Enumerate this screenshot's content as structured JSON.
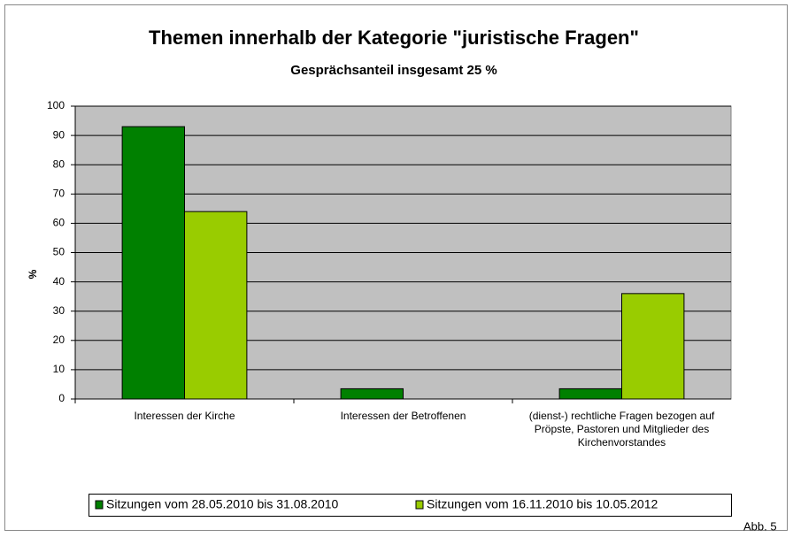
{
  "chart_data": {
    "type": "bar",
    "title": "Themen innerhalb der Kategorie \"juristische Fragen\"",
    "subtitle": "Gesprächsanteil insgesamt 25 %",
    "y_label": "%",
    "categories": [
      "Interessen der Kirche",
      "Interessen der Betroffenen",
      "(dienst-) rechtliche Fragen bezogen auf Pröpste, Pastoren und Mitglieder des Kirchenvorstandes"
    ],
    "series": [
      {
        "name": "Sitzungen vom 28.05.2010 bis 31.08.2010",
        "color": "#008000",
        "values": [
          93,
          3.5,
          3.5
        ]
      },
      {
        "name": "Sitzungen vom 16.11.2010 bis 10.05.2012",
        "color": "#99cc00",
        "values": [
          64,
          0,
          36
        ]
      }
    ],
    "ylim": [
      0,
      100
    ],
    "yticks": [
      0,
      10,
      20,
      30,
      40,
      50,
      60,
      70,
      80,
      90,
      100
    ],
    "grid": true,
    "legend": "bottom",
    "annotation": "Abb. 5"
  }
}
